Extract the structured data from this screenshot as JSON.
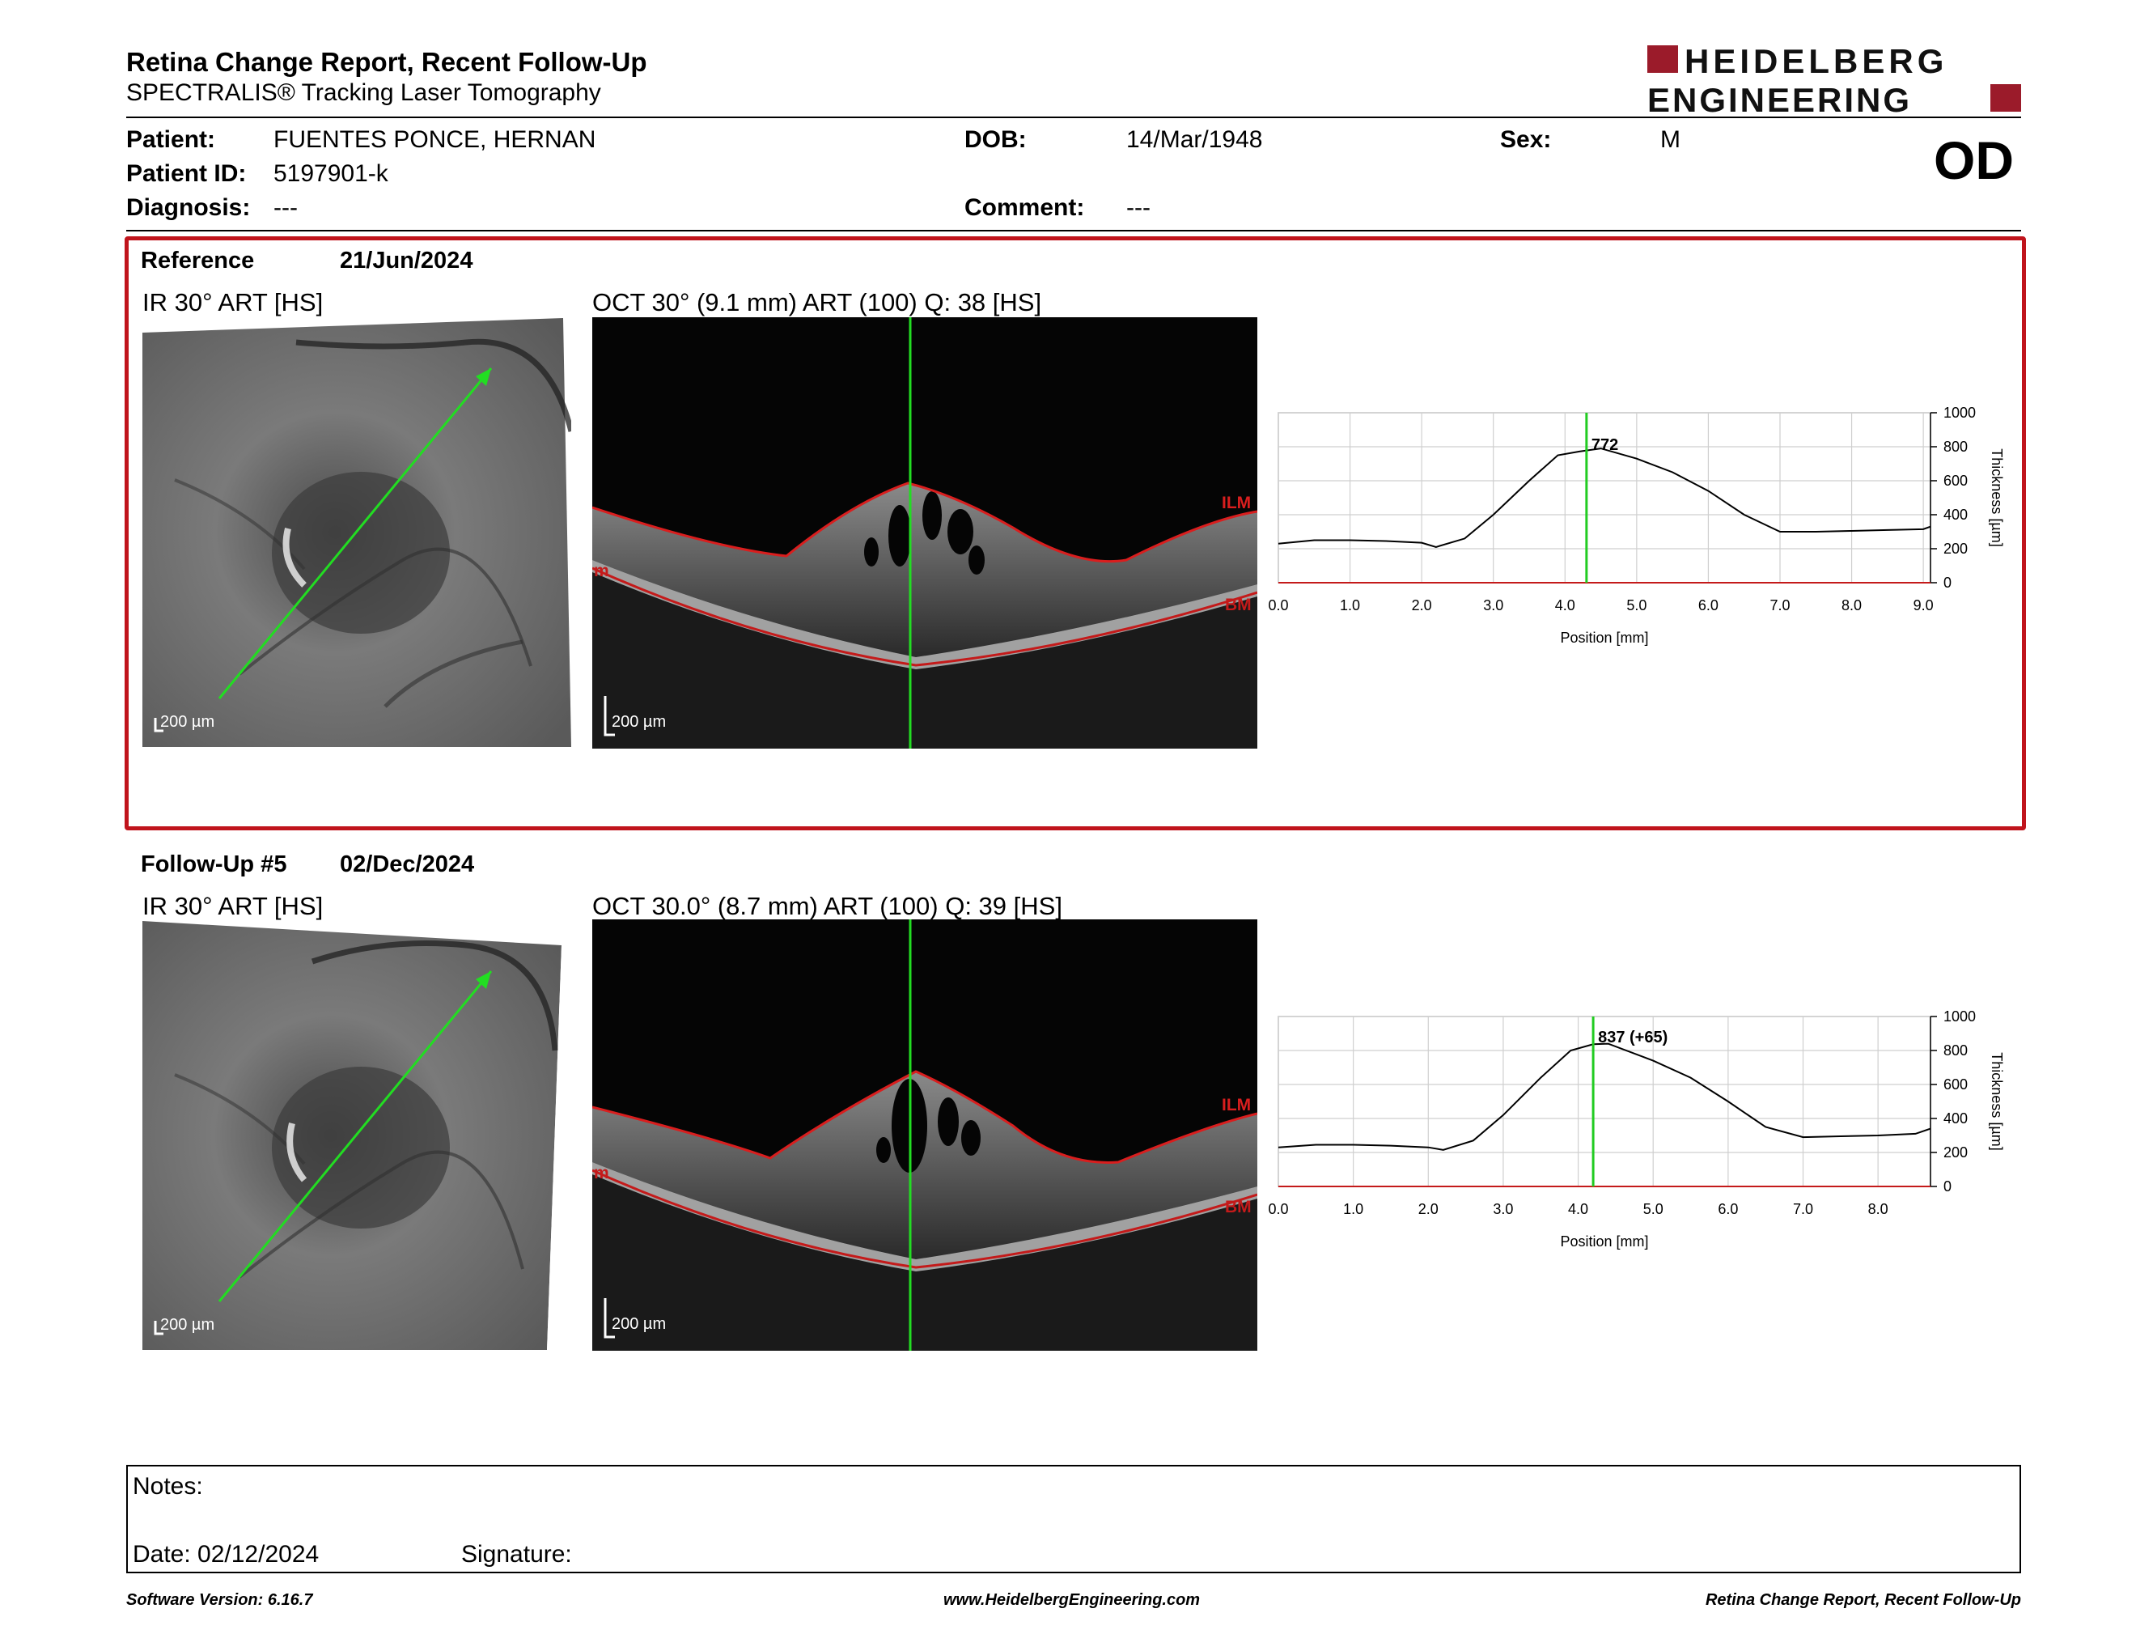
{
  "header": {
    "title": "Retina Change Report, Recent Follow-Up",
    "subtitle": "SPECTRALIS® Tracking Laser Tomography",
    "logo_line1": "HEIDELBERG",
    "logo_line2": "ENGINEERING",
    "brand_color": "#9b1b2a"
  },
  "patient": {
    "patient_label": "Patient:",
    "patient_name": "FUENTES PONCE, HERNAN",
    "id_label": "Patient ID:",
    "id_value": "5197901-k",
    "diagnosis_label": "Diagnosis:",
    "diagnosis_value": "---",
    "dob_label": "DOB:",
    "dob_value": "14/Mar/1948",
    "comment_label": "Comment:",
    "comment_value": "---",
    "sex_label": "Sex:",
    "sex_value": "M",
    "eye": "OD"
  },
  "reference": {
    "label": "Reference",
    "date": "21/Jun/2024",
    "ir_caption": "IR 30° ART [HS]",
    "oct_caption": "OCT 30° (9.1 mm) ART (100) Q: 38 [HS]",
    "ir_scale": "200 µm",
    "oct_scale": "200 µm",
    "layer_top": "ILM",
    "layer_bottom": "BM",
    "layer_left": "m"
  },
  "followup": {
    "label": "Follow-Up #5",
    "date": "02/Dec/2024",
    "ir_caption": "IR 30° ART [HS]",
    "oct_caption": "OCT 30.0° (8.7 mm) ART (100) Q: 39 [HS]",
    "ir_scale": "200 µm",
    "oct_scale": "200 µm",
    "layer_top": "ILM",
    "layer_bottom": "BM",
    "layer_left": "m"
  },
  "chart_data": [
    {
      "type": "line",
      "xlabel": "Position [mm]",
      "ylabel": "Thickness [µm]",
      "xlim": [
        0,
        9.1
      ],
      "ylim": [
        0,
        1000
      ],
      "xticks": [
        "0.0",
        "1.0",
        "2.0",
        "3.0",
        "4.0",
        "5.0",
        "6.0",
        "7.0",
        "8.0",
        "9.0"
      ],
      "yticks": [
        "0",
        "200",
        "400",
        "600",
        "800",
        "1000"
      ],
      "grid": true,
      "marker_x": 4.3,
      "annotation": "772",
      "annotation_x": 4.3,
      "annotation_y": 772,
      "series": [
        {
          "x": [
            0.0,
            0.5,
            1.0,
            1.5,
            2.0,
            2.2,
            2.6,
            3.0,
            3.5,
            3.9,
            4.2,
            4.5,
            5.0,
            5.5,
            6.0,
            6.5,
            7.0,
            7.5,
            8.0,
            8.5,
            9.0,
            9.1
          ],
          "y": [
            230,
            250,
            250,
            245,
            235,
            210,
            260,
            400,
            600,
            750,
            772,
            790,
            730,
            650,
            540,
            400,
            300,
            300,
            305,
            310,
            315,
            330
          ]
        }
      ]
    },
    {
      "type": "line",
      "xlabel": "Position [mm]",
      "ylabel": "Thickness [µm]",
      "xlim": [
        0,
        8.7
      ],
      "ylim": [
        0,
        1000
      ],
      "xticks": [
        "0.0",
        "1.0",
        "2.0",
        "3.0",
        "4.0",
        "5.0",
        "6.0",
        "7.0",
        "8.0"
      ],
      "yticks": [
        "0",
        "200",
        "400",
        "600",
        "800",
        "1000"
      ],
      "grid": true,
      "marker_x": 4.2,
      "annotation": "837 (+65)",
      "annotation_x": 4.2,
      "annotation_y": 837,
      "series": [
        {
          "x": [
            0.0,
            0.5,
            1.0,
            1.5,
            2.0,
            2.2,
            2.6,
            3.0,
            3.5,
            3.9,
            4.2,
            4.4,
            5.0,
            5.5,
            6.0,
            6.5,
            7.0,
            7.5,
            8.0,
            8.5,
            8.7
          ],
          "y": [
            230,
            245,
            245,
            240,
            230,
            215,
            270,
            420,
            640,
            800,
            837,
            840,
            740,
            640,
            500,
            350,
            290,
            295,
            300,
            310,
            340
          ]
        }
      ]
    }
  ],
  "notes": {
    "notes_label": "Notes:",
    "date_label": "Date: 02/12/2024",
    "signature_label": "Signature:"
  },
  "footer": {
    "software": "Software Version: 6.16.7",
    "website": "www.HeidelbergEngineering.com",
    "report": "Retina Change Report, Recent Follow-Up"
  }
}
